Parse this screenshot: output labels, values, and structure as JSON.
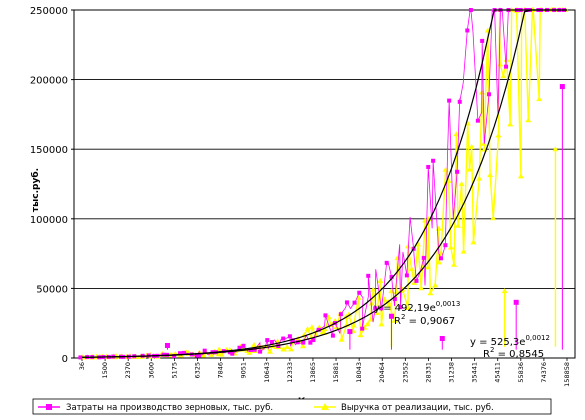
{
  "chart_data": {
    "type": "scatter",
    "ylabel": "тыс.руб.",
    "xlabel": "Количество, ц",
    "ylim": [
      0,
      250000
    ],
    "yticks": [
      "0",
      "50000",
      "100000",
      "150000",
      "200000",
      "250000"
    ],
    "xticks": [
      "36",
      "1500",
      "2370",
      "3600",
      "5175",
      "6325",
      "7846",
      "9051",
      "10643",
      "12333",
      "13865",
      "15881",
      "18043",
      "20464",
      "23552",
      "28331",
      "31238",
      "35441",
      "45411",
      "55836",
      "74376",
      "158858"
    ],
    "grid": "horizontal",
    "legend_position": "bottom",
    "series": [
      {
        "name": "Затраты на производство зерновых, тыс. руб.",
        "color": "#ff00ff",
        "marker": "square",
        "highlights": [
          {
            "x_index": 3.7,
            "y": 9000
          },
          {
            "x_index": 11.6,
            "y": 19000
          },
          {
            "x_index": 13.4,
            "y": 30000
          },
          {
            "x_index": 15.6,
            "y": 14000
          },
          {
            "x_index": 18.8,
            "y": 40000
          },
          {
            "x_index": 20.8,
            "y": 195000
          }
        ]
      },
      {
        "name": "Выручка от реализации, тыс. руб.",
        "color": "#ffff00",
        "marker": "triangle",
        "highlights": [
          {
            "x_index": 13.4,
            "y": 48000
          },
          {
            "x_index": 18.3,
            "y": 48000
          },
          {
            "x_index": 20.5,
            "y": 150000
          }
        ]
      }
    ],
    "trendlines": [
      {
        "series": 0,
        "a": 492.19,
        "b": 0.0013,
        "r2": 0.9067,
        "equation": "y = 492,19e",
        "exponent": "0,0013",
        "r2_label": "R",
        "r2_value": " = 0,9067"
      },
      {
        "series": 1,
        "a": 525.3,
        "b": 0.0012,
        "r2": 0.8545,
        "equation": "y = 525,3e",
        "exponent": "0,0012",
        "r2_label": "R",
        "r2_value": " = 0,8545"
      }
    ]
  }
}
